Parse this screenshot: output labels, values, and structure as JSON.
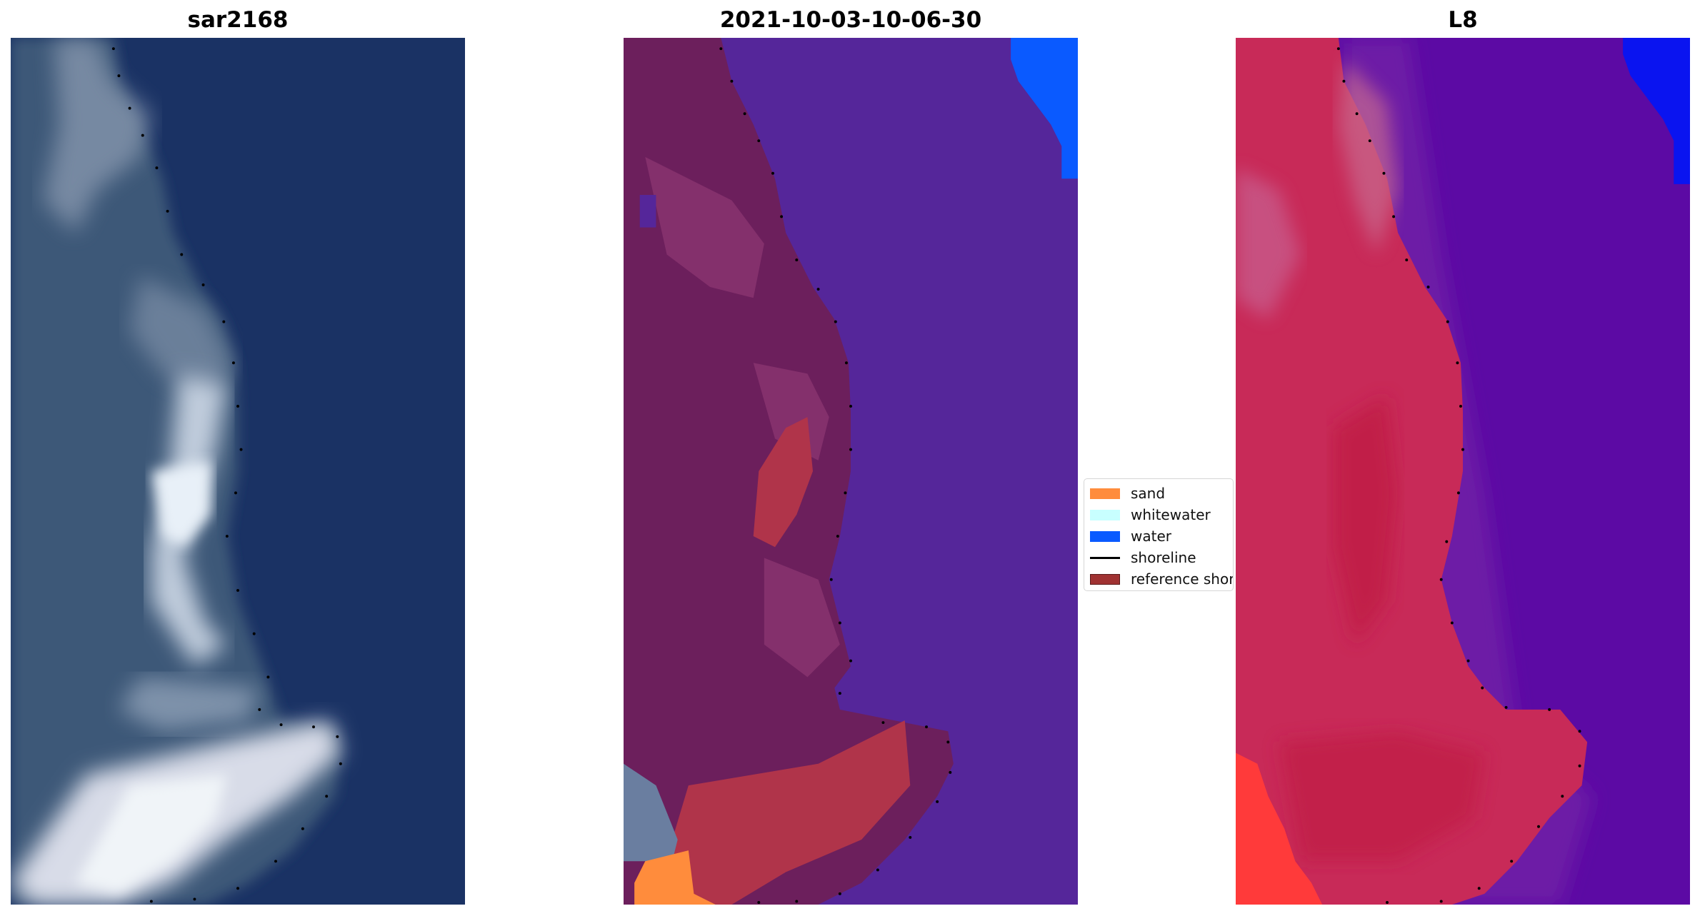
{
  "panels": [
    {
      "title": "sar2168"
    },
    {
      "title": "2021-10-03-10-06-30"
    },
    {
      "title": "L8"
    }
  ],
  "legend": {
    "items": [
      {
        "label": "sand",
        "color": "#ff8c3c",
        "kind": "patch"
      },
      {
        "label": "whitewater",
        "color": "#c8ffff",
        "kind": "patch"
      },
      {
        "label": "water",
        "color": "#0a5aff",
        "kind": "patch"
      },
      {
        "label": "shoreline",
        "color": "#000000",
        "kind": "line"
      },
      {
        "label": "reference shoreline",
        "color": "#a03232",
        "kind": "patch"
      }
    ]
  },
  "colors": {
    "ocean_rgb": "#1a3264",
    "ocean_classified": "#55269a",
    "land_classified": "#6c1f5c",
    "ocean_false_color": "#5c0aa4",
    "land_false_color": "#c82a58",
    "water_class": "#0a5aff",
    "sand_class": "#ff8c3c"
  }
}
